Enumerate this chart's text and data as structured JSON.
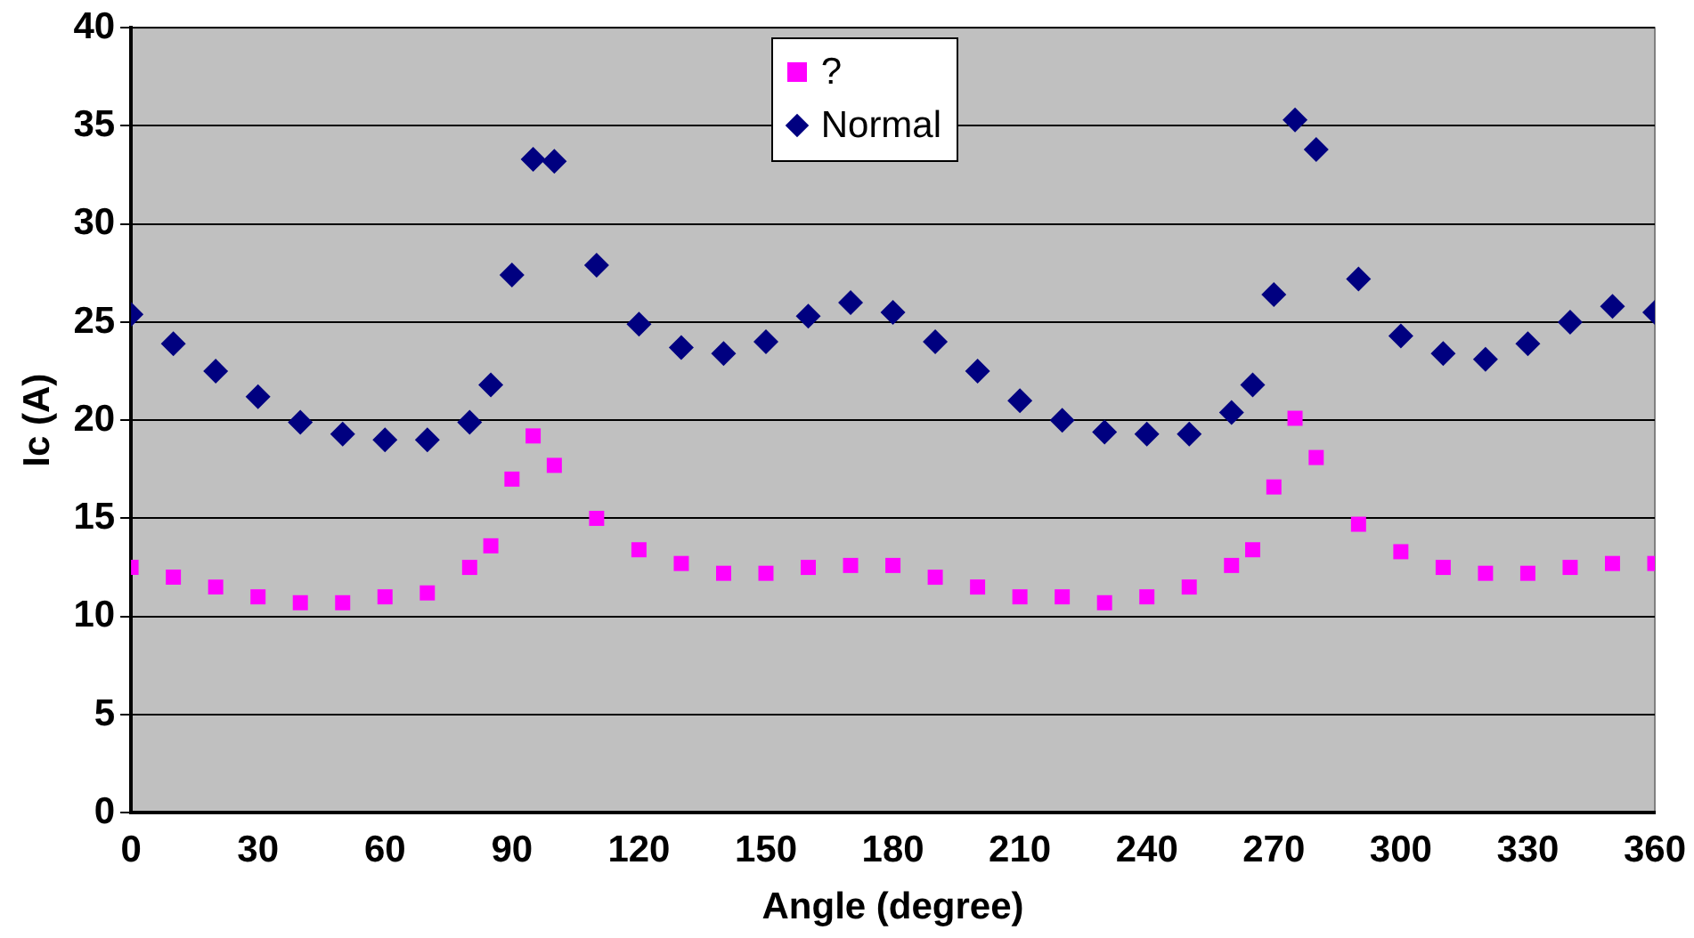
{
  "chart_data": {
    "type": "scatter",
    "xlabel": "Angle (degree)",
    "ylabel": "Ic (A)",
    "x": [
      0,
      10,
      20,
      30,
      40,
      50,
      60,
      70,
      80,
      85,
      90,
      95,
      100,
      110,
      120,
      130,
      140,
      150,
      160,
      170,
      180,
      190,
      200,
      210,
      220,
      230,
      240,
      250,
      260,
      265,
      270,
      275,
      280,
      290,
      300,
      310,
      320,
      330,
      340,
      350,
      360
    ],
    "series": [
      {
        "name": "?",
        "color": "#ff00ff",
        "marker": "square",
        "values": [
          12.5,
          12.0,
          11.5,
          11.0,
          10.7,
          10.7,
          11.0,
          11.2,
          12.5,
          13.6,
          17.0,
          19.2,
          17.7,
          15.0,
          13.4,
          12.7,
          12.2,
          12.2,
          12.5,
          12.6,
          12.6,
          12.0,
          11.5,
          11.0,
          11.0,
          10.7,
          11.0,
          11.5,
          12.6,
          13.4,
          16.6,
          20.1,
          18.1,
          14.7,
          13.3,
          12.5,
          12.2,
          12.2,
          12.5,
          12.7,
          12.7
        ]
      },
      {
        "name": "Normal",
        "color": "#000080",
        "marker": "diamond",
        "values": [
          25.4,
          23.9,
          22.5,
          21.2,
          19.9,
          19.3,
          19.0,
          19.0,
          19.9,
          21.8,
          27.4,
          33.3,
          33.2,
          27.9,
          24.9,
          23.7,
          23.4,
          24.0,
          25.3,
          26.0,
          25.5,
          24.0,
          22.5,
          21.0,
          20.0,
          19.4,
          19.3,
          19.3,
          20.4,
          21.8,
          26.4,
          35.3,
          33.8,
          27.2,
          24.3,
          23.4,
          23.1,
          23.9,
          25.0,
          25.8,
          25.5
        ]
      }
    ],
    "xlim": [
      0,
      360
    ],
    "xticks": [
      0,
      30,
      60,
      90,
      120,
      150,
      180,
      210,
      240,
      270,
      300,
      330,
      360
    ],
    "ylim": [
      0,
      40
    ],
    "yticks": [
      0,
      5,
      10,
      15,
      20,
      25,
      30,
      35,
      40
    ],
    "grid": "y",
    "legend": "top"
  }
}
